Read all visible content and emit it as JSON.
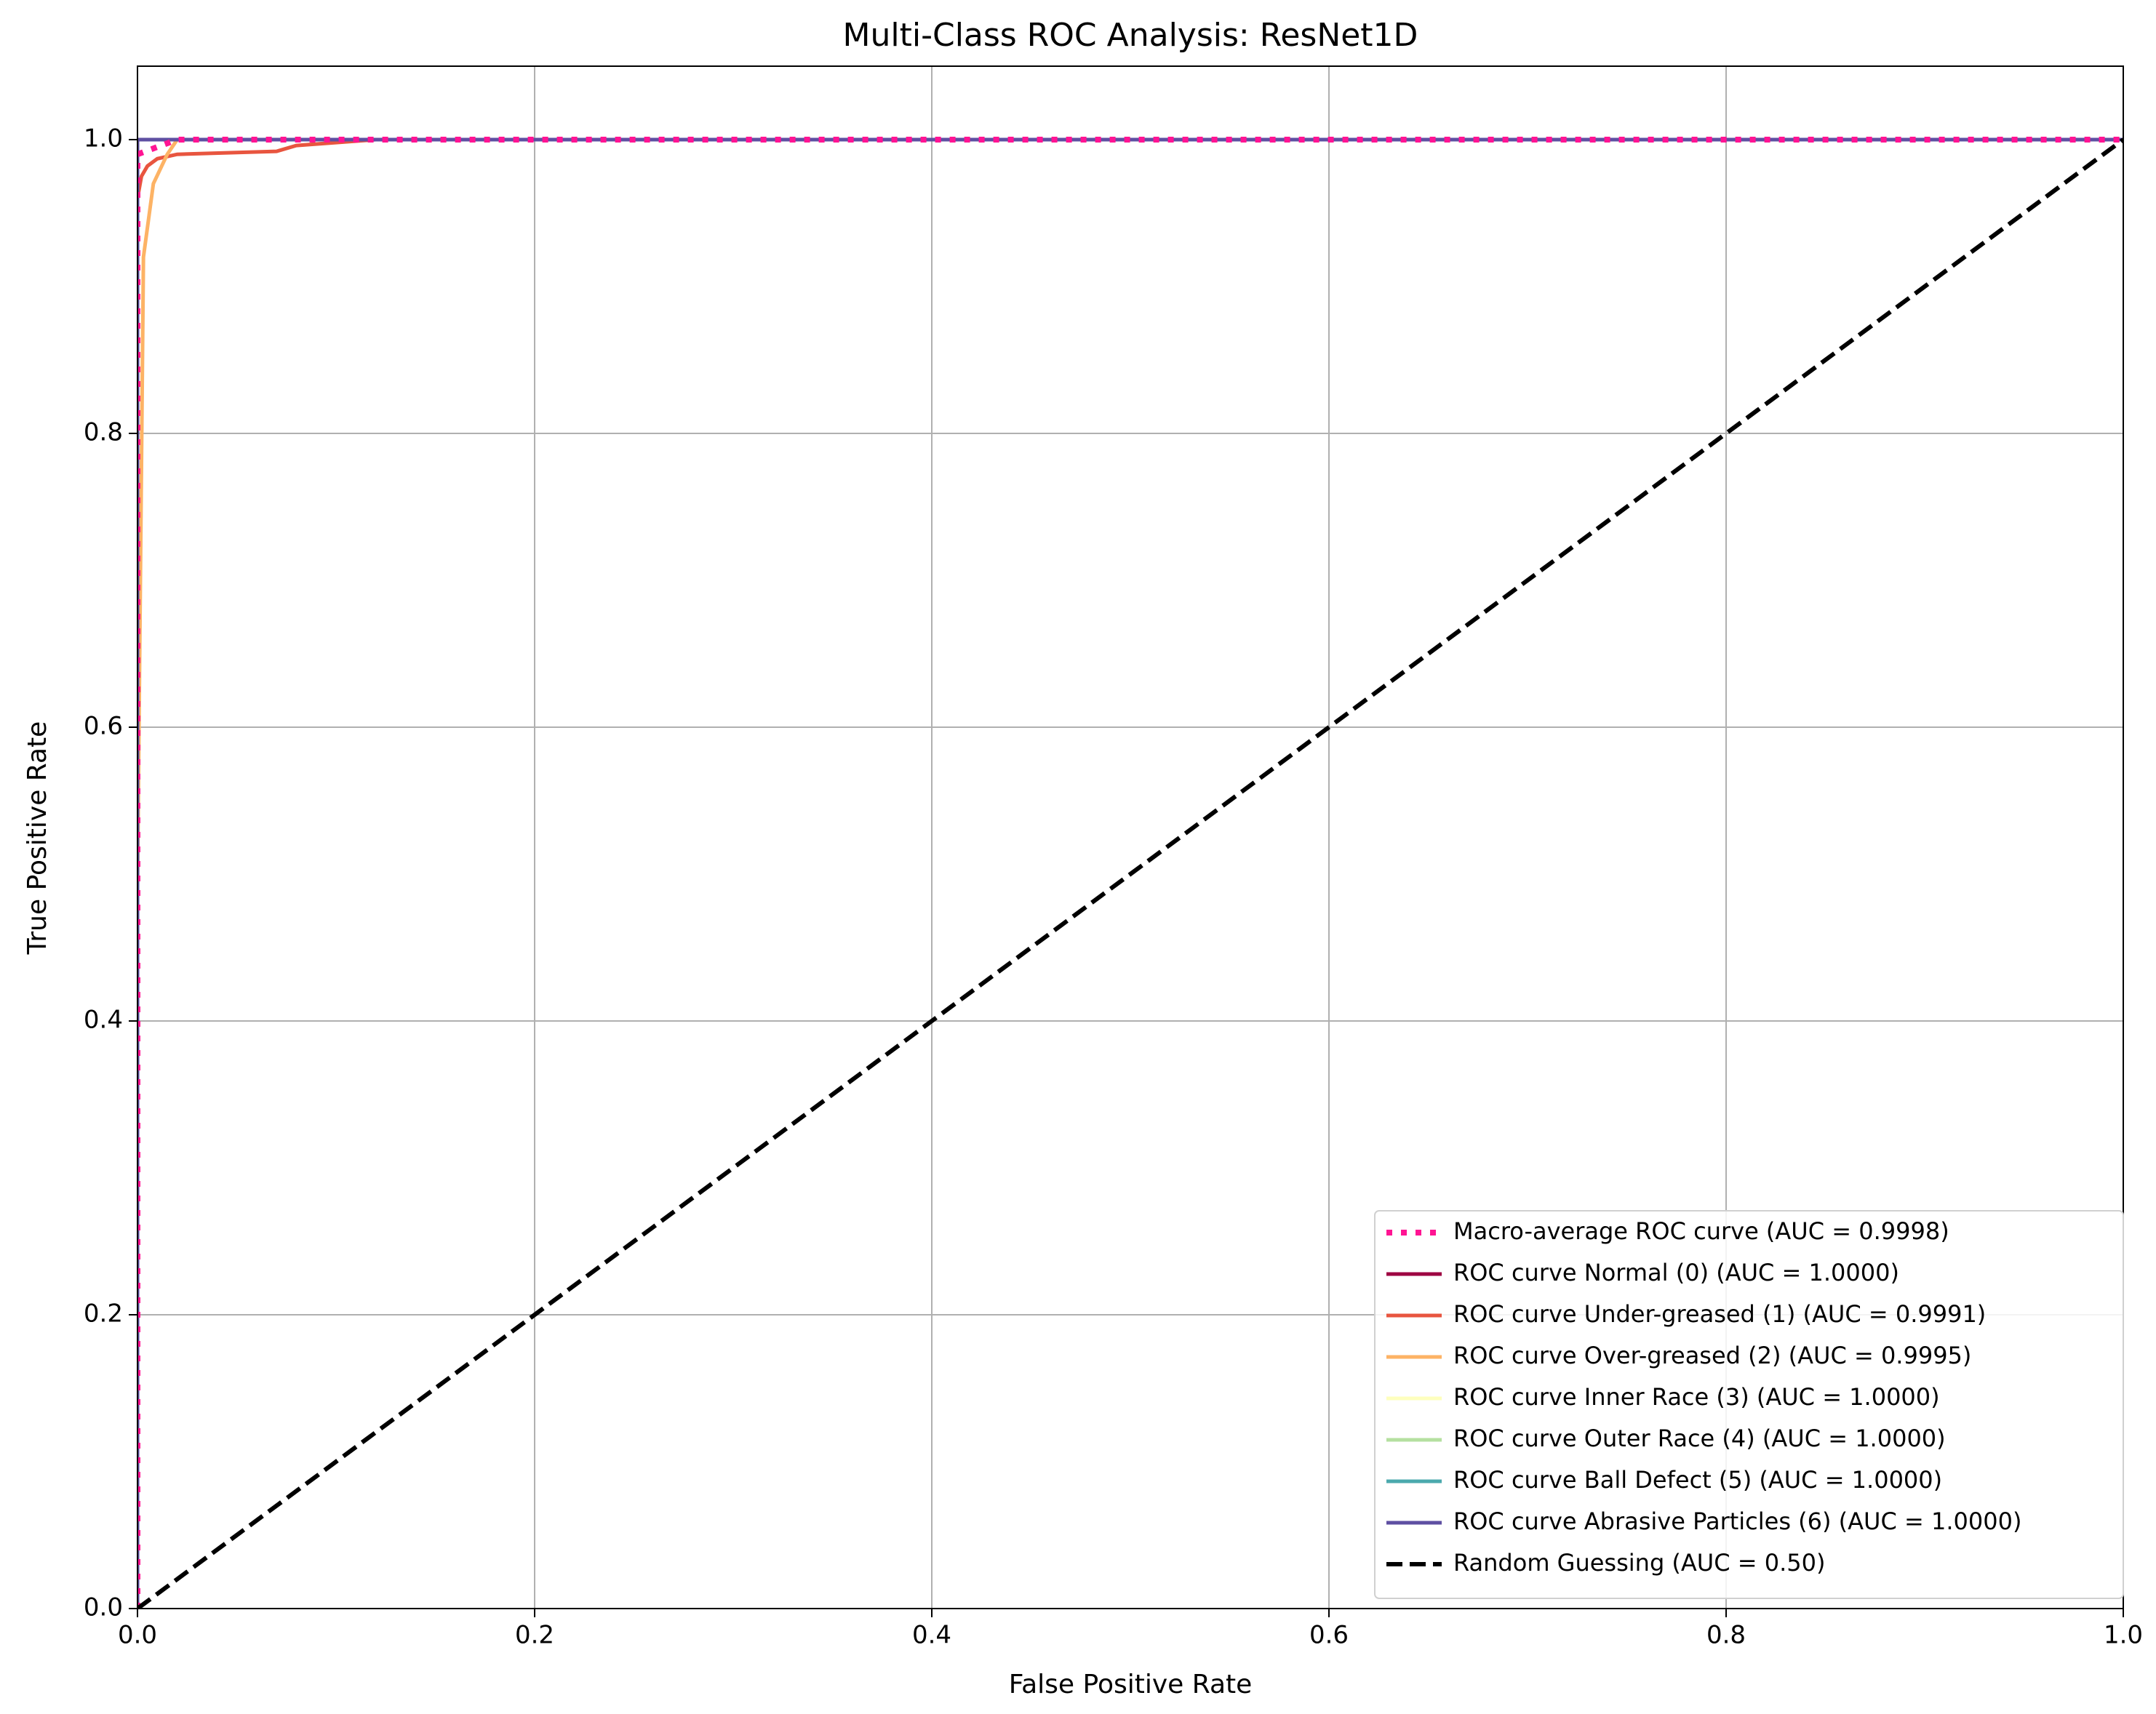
{
  "chart_data": {
    "type": "line",
    "title": "Multi-Class ROC Analysis: ResNet1D",
    "xlabel": "False Positive Rate",
    "ylabel": "True Positive Rate",
    "xlim": [
      0,
      1
    ],
    "ylim": [
      0,
      1.05
    ],
    "xticks": [
      {
        "value": 0,
        "label": "0.0"
      },
      {
        "value": 0.2,
        "label": "0.2"
      },
      {
        "value": 0.4,
        "label": "0.4"
      },
      {
        "value": 0.6,
        "label": "0.6"
      },
      {
        "value": 0.8,
        "label": "0.8"
      },
      {
        "value": 1,
        "label": "1.0"
      }
    ],
    "yticks": [
      {
        "value": 0,
        "label": "0.0"
      },
      {
        "value": 0.2,
        "label": "0.2"
      },
      {
        "value": 0.4,
        "label": "0.4"
      },
      {
        "value": 0.6,
        "label": "0.6"
      },
      {
        "value": 0.8,
        "label": "0.8"
      },
      {
        "value": 1,
        "label": "1.0"
      }
    ],
    "grid": true,
    "legend": "lower right",
    "series": [
      {
        "name": "Macro-average ROC curve (AUC = 0.9998)",
        "color": "#ff1493",
        "linestyle": "dotted",
        "x": [
          0,
          0,
          0.01,
          0.02,
          1
        ],
        "values": [
          0,
          0.99,
          0.995,
          1,
          1
        ]
      },
      {
        "name": "ROC curve Normal (0) (AUC = 1.0000)",
        "color": "#9e0142",
        "linestyle": "solid",
        "x": [
          0,
          0,
          1
        ],
        "values": [
          0,
          1,
          1
        ]
      },
      {
        "name": "ROC curve Under-greased (1) (AUC = 0.9991)",
        "color": "#e8553f",
        "linestyle": "solid",
        "x": [
          0,
          0,
          0.002,
          0.005,
          0.01,
          0.02,
          0.07,
          0.08,
          0.12,
          1
        ],
        "values": [
          0,
          0.96,
          0.975,
          0.982,
          0.987,
          0.99,
          0.992,
          0.996,
          1,
          1
        ]
      },
      {
        "name": "ROC curve Over-greased (2) (AUC = 0.9995)",
        "color": "#fdb365",
        "linestyle": "solid",
        "x": [
          0,
          0,
          0.003,
          0.008,
          0.015,
          0.02,
          1
        ],
        "values": [
          0,
          0.49,
          0.92,
          0.97,
          0.99,
          1,
          1
        ]
      },
      {
        "name": "ROC curve Inner Race (3) (AUC = 1.0000)",
        "color": "#feffbe",
        "linestyle": "solid",
        "x": [
          0,
          0,
          1
        ],
        "values": [
          0,
          1,
          1
        ]
      },
      {
        "name": "ROC curve Outer Race (4) (AUC = 1.0000)",
        "color": "#b5e0a0",
        "linestyle": "solid",
        "x": [
          0,
          0,
          1
        ],
        "values": [
          0,
          1,
          1
        ]
      },
      {
        "name": "ROC curve Ball Defect (5) (AUC = 1.0000)",
        "color": "#4ba9ad",
        "linestyle": "solid",
        "x": [
          0,
          0,
          1
        ],
        "values": [
          0,
          1,
          1
        ]
      },
      {
        "name": "ROC curve Abrasive Particles (6) (AUC = 1.0000)",
        "color": "#5e4fa2",
        "linestyle": "solid",
        "x": [
          0,
          0,
          1
        ],
        "values": [
          0,
          1,
          1
        ]
      },
      {
        "name": "Random Guessing (AUC = 0.50)",
        "color": "#000000",
        "linestyle": "dashed",
        "x": [
          0,
          1
        ],
        "values": [
          0,
          1
        ]
      }
    ]
  }
}
